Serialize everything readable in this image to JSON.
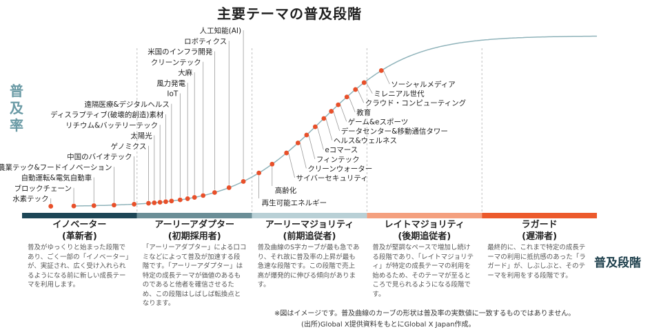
{
  "title": "主要テーマの普及段階",
  "y_axis_label": "普及率",
  "x_axis_label": "普及段階",
  "chart_data": {
    "type": "line",
    "title": "主要テーマの普及段階",
    "ylabel": "普及率",
    "xlabel": "普及段階",
    "grid": false,
    "legend": "none",
    "colors": {
      "curve": "#8fb3ba",
      "points": "#e8502a",
      "leader": "#9a9a9a",
      "divider": "#bfbfbf"
    },
    "stages": [
      {
        "name": "イノベーター",
        "sub": "(革新者)",
        "color": "#1d4656",
        "desc": "普及がゆっくりと始まった段階であり、ごく一部の「イノベーター」が、実証され、広く受け入れられるようになる前に新しい成長テーマを利用します。"
      },
      {
        "name": "アーリーアダプター",
        "sub": "(初期採用者)",
        "color": "#6b8e97",
        "desc": "「アーリーアダプター」による口コミなどによって普及が加速する段階です。「アーリーアダプター」は特定の成長テーマが価値のあるものであると他者を確信させるため、この段階はしばしば転換点となります。"
      },
      {
        "name": "アーリーマジョリティ",
        "sub": "(前期追従者)",
        "color": "#b9d0d6",
        "desc": "普及曲線のS字カーブが最も急であり、それ故に普及率の上昇が最も急速な段階です。この段階で売上高が爆発的に伸びる傾向があります。"
      },
      {
        "name": "レイトマジョリティ",
        "sub": "(後期追従者)",
        "color": "#f4a07f",
        "desc": "普及が堅調なペースで増加し続ける段階であり、「レイトマジョリティ」が特定の成長テーマの利用を始めるため、そのテーマが至るところで見られるようになる段階です。"
      },
      {
        "name": "ラガード",
        "sub": "(遅滞者)",
        "color": "#ec5a2c",
        "desc": "最終的に、これまで特定の成長テーマの利用に抵抗感のあった「ラガード」が、しぶしぶと、そのテーマを利用をする段階です。"
      }
    ],
    "themes": [
      {
        "label": "水素テック",
        "x": 0.5
      },
      {
        "label": "ブロックチェーン",
        "x": 0.9
      },
      {
        "label": "自動運転&電気自動車",
        "x": 1.25
      },
      {
        "label": "農業テック&フードイノベーション",
        "x": 1.6
      },
      {
        "label": "中国のバイオテック",
        "x": 1.95
      },
      {
        "label": "ゲノミクス",
        "x": 2.2
      },
      {
        "label": "太陽光",
        "x": 2.3
      },
      {
        "label": "リチウム&バッテリーテック",
        "x": 2.4
      },
      {
        "label": "ディスラプティブ(破壊的創造)素材",
        "x": 2.5
      },
      {
        "label": "遠隔医療&デジタルヘルス",
        "x": 2.6
      },
      {
        "label": "IoT",
        "x": 2.75
      },
      {
        "label": "風力発電",
        "x": 2.88
      },
      {
        "label": "大麻",
        "x": 3.0
      },
      {
        "label": "クリーンテック",
        "x": 3.15
      },
      {
        "label": "米国のインフラ開発",
        "x": 3.35
      },
      {
        "label": "ロボティクス",
        "x": 3.6
      },
      {
        "label": "人工知能(AI)",
        "x": 3.85
      },
      {
        "label": "再生可能エネルギー",
        "x": 4.12
      },
      {
        "label": "高齢化",
        "x": 4.35
      },
      {
        "label": "サイバーセキュリティ",
        "x": 4.6
      },
      {
        "label": "クリーンウォーター",
        "x": 4.8
      },
      {
        "label": "フィンテック",
        "x": 4.95
      },
      {
        "label": "eコマース",
        "x": 5.1
      },
      {
        "label": "ヘルス&ウェルネス",
        "x": 5.25
      },
      {
        "label": "データセンター&移動通信タワー",
        "x": 5.38
      },
      {
        "label": "ゲーム&eスポーツ",
        "x": 5.5
      },
      {
        "label": "教育",
        "x": 5.65
      },
      {
        "label": "クラウド・コンピューティング",
        "x": 5.8
      },
      {
        "label": "ミレニアル世代",
        "x": 5.95
      },
      {
        "label": "ソーシャルメディア",
        "x": 6.25
      }
    ]
  },
  "notes": {
    "line1": "※図はイメージです。普及曲線のカーブの形状は普及率の実数値に一致するものではありません。",
    "line2": "(出所)Global X提供資料をもとにGlobal X Japan作成。"
  }
}
